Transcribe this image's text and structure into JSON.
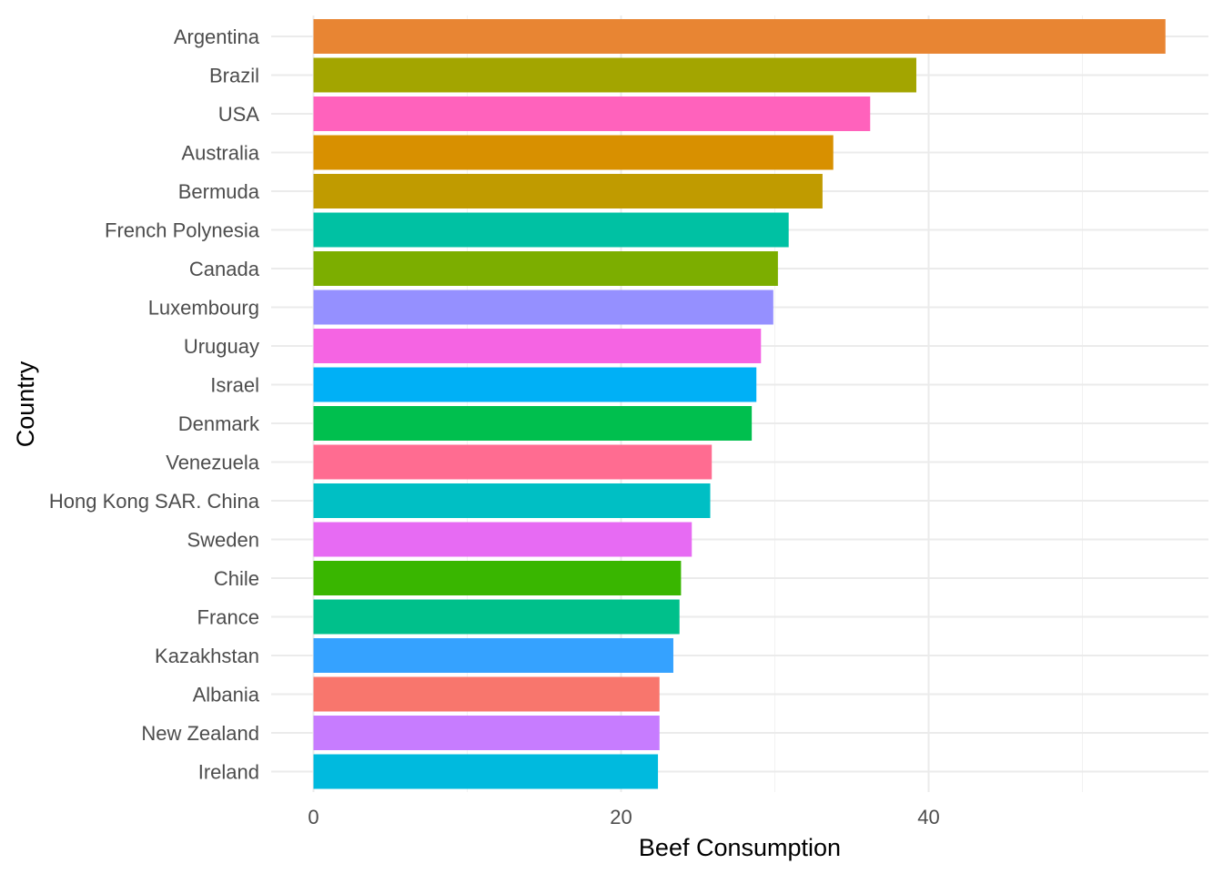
{
  "chart_data": {
    "type": "bar",
    "orientation": "horizontal",
    "xlabel": "Beef Consumption",
    "ylabel": "Country",
    "xlim": [
      0,
      55.4
    ],
    "xticks": [
      0,
      20,
      40
    ],
    "grid": true,
    "legend": "none",
    "categories": [
      "Argentina",
      "Brazil",
      "USA",
      "Australia",
      "Bermuda",
      "French Polynesia",
      "Canada",
      "Luxembourg",
      "Uruguay",
      "Israel",
      "Denmark",
      "Venezuela",
      "Hong Kong SAR. China",
      "Sweden",
      "Chile",
      "France",
      "Kazakhstan",
      "Albania",
      "New Zealand",
      "Ireland"
    ],
    "values": [
      55.4,
      39.2,
      36.2,
      33.8,
      33.1,
      30.9,
      30.2,
      29.9,
      29.1,
      28.8,
      28.5,
      25.9,
      25.8,
      24.6,
      23.9,
      23.8,
      23.4,
      22.5,
      22.5,
      22.4
    ],
    "colors": [
      "#E88533",
      "#A3A500",
      "#FF62BC",
      "#D89000",
      "#C09B00",
      "#00C1A3",
      "#7CAE00",
      "#9590FF",
      "#F564E3",
      "#00B0F6",
      "#00BF4E",
      "#FF6C91",
      "#00BFC4",
      "#E76BF3",
      "#39B600",
      "#00C08B",
      "#35A2FF",
      "#F8766D",
      "#C77CFF",
      "#00BADE"
    ]
  }
}
